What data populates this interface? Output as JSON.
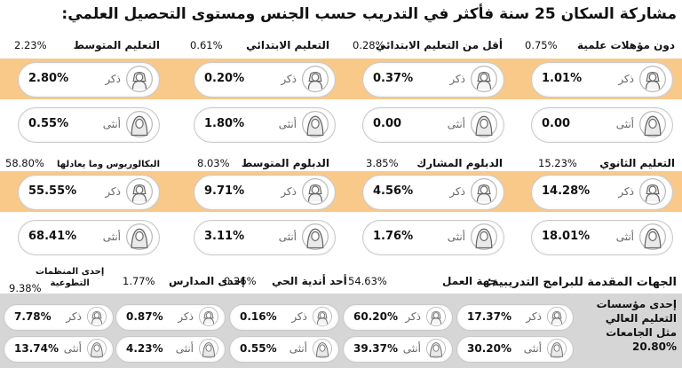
{
  "title": "مشاركة السكان 25 سنة فأكثر في التدريب حسب الجنس ومستوى التحصيل العلمي:",
  "colors": {
    "band": "#f9c98a",
    "gray_band": "#d6d6d6",
    "pill": "#ffffff"
  },
  "gender": {
    "male": "ذكر",
    "female": "أنثى"
  },
  "icons": {
    "male": "male-avatar-icon",
    "female": "female-avatar-icon"
  },
  "edu": [
    {
      "name": "دون مؤهلات علمية",
      "pct": "0.75%",
      "male": "1.01%",
      "female": "0.00"
    },
    {
      "name": "أقل من التعليم الابتدائي",
      "pct": "0.28%",
      "male": "0.37%",
      "female": "0.00"
    },
    {
      "name": "التعليم الابتدائي",
      "pct": "0.61%",
      "male": "0.20%",
      "female": "1.80%"
    },
    {
      "name": "التعليم المتوسط",
      "pct": "2.23%",
      "male": "2.80%",
      "female": "0.55%"
    },
    {
      "name": "التعليم الثانوي",
      "pct": "15.23%",
      "male": "14.28%",
      "female": "18.01%"
    },
    {
      "name": "الدبلوم المشارك",
      "pct": "3.85%",
      "male": "4.56%",
      "female": "1.76%"
    },
    {
      "name": "الدبلوم المتوسط",
      "pct": "8.03%",
      "male": "9.71%",
      "female": "3.11%"
    },
    {
      "name": "البكالوريوس وما يعادلها",
      "pct": "58.80%",
      "male": "55.55%",
      "female": "68.41%"
    }
  ],
  "providers_title": "الجهات المقدمة للبرامج التدريبية:",
  "prov0": {
    "l1": "إحدى مؤسسات",
    "l2": "التعليم العالي",
    "l3": "مثل الجامعات",
    "pct": "20.80%",
    "male": "17.37%",
    "female": "30.20%"
  },
  "providers": [
    {
      "name": "جهة العمل",
      "pct": "54.63%",
      "male": "60.20%",
      "female": "39.37%"
    },
    {
      "name": "أحد أندية الحي",
      "pct": "0.26%",
      "male": "0.16%",
      "female": "0.55%"
    },
    {
      "name": "إحدى المدارس",
      "pct": "1.77%",
      "male": "0.87%",
      "female": "4.23%"
    },
    {
      "name": "إحدى المنظمات التطوعية",
      "l1": "إحدى المنظمات",
      "l2": "التطوعية",
      "pct": "9.38%",
      "male": "7.78%",
      "female": "13.74%"
    }
  ]
}
